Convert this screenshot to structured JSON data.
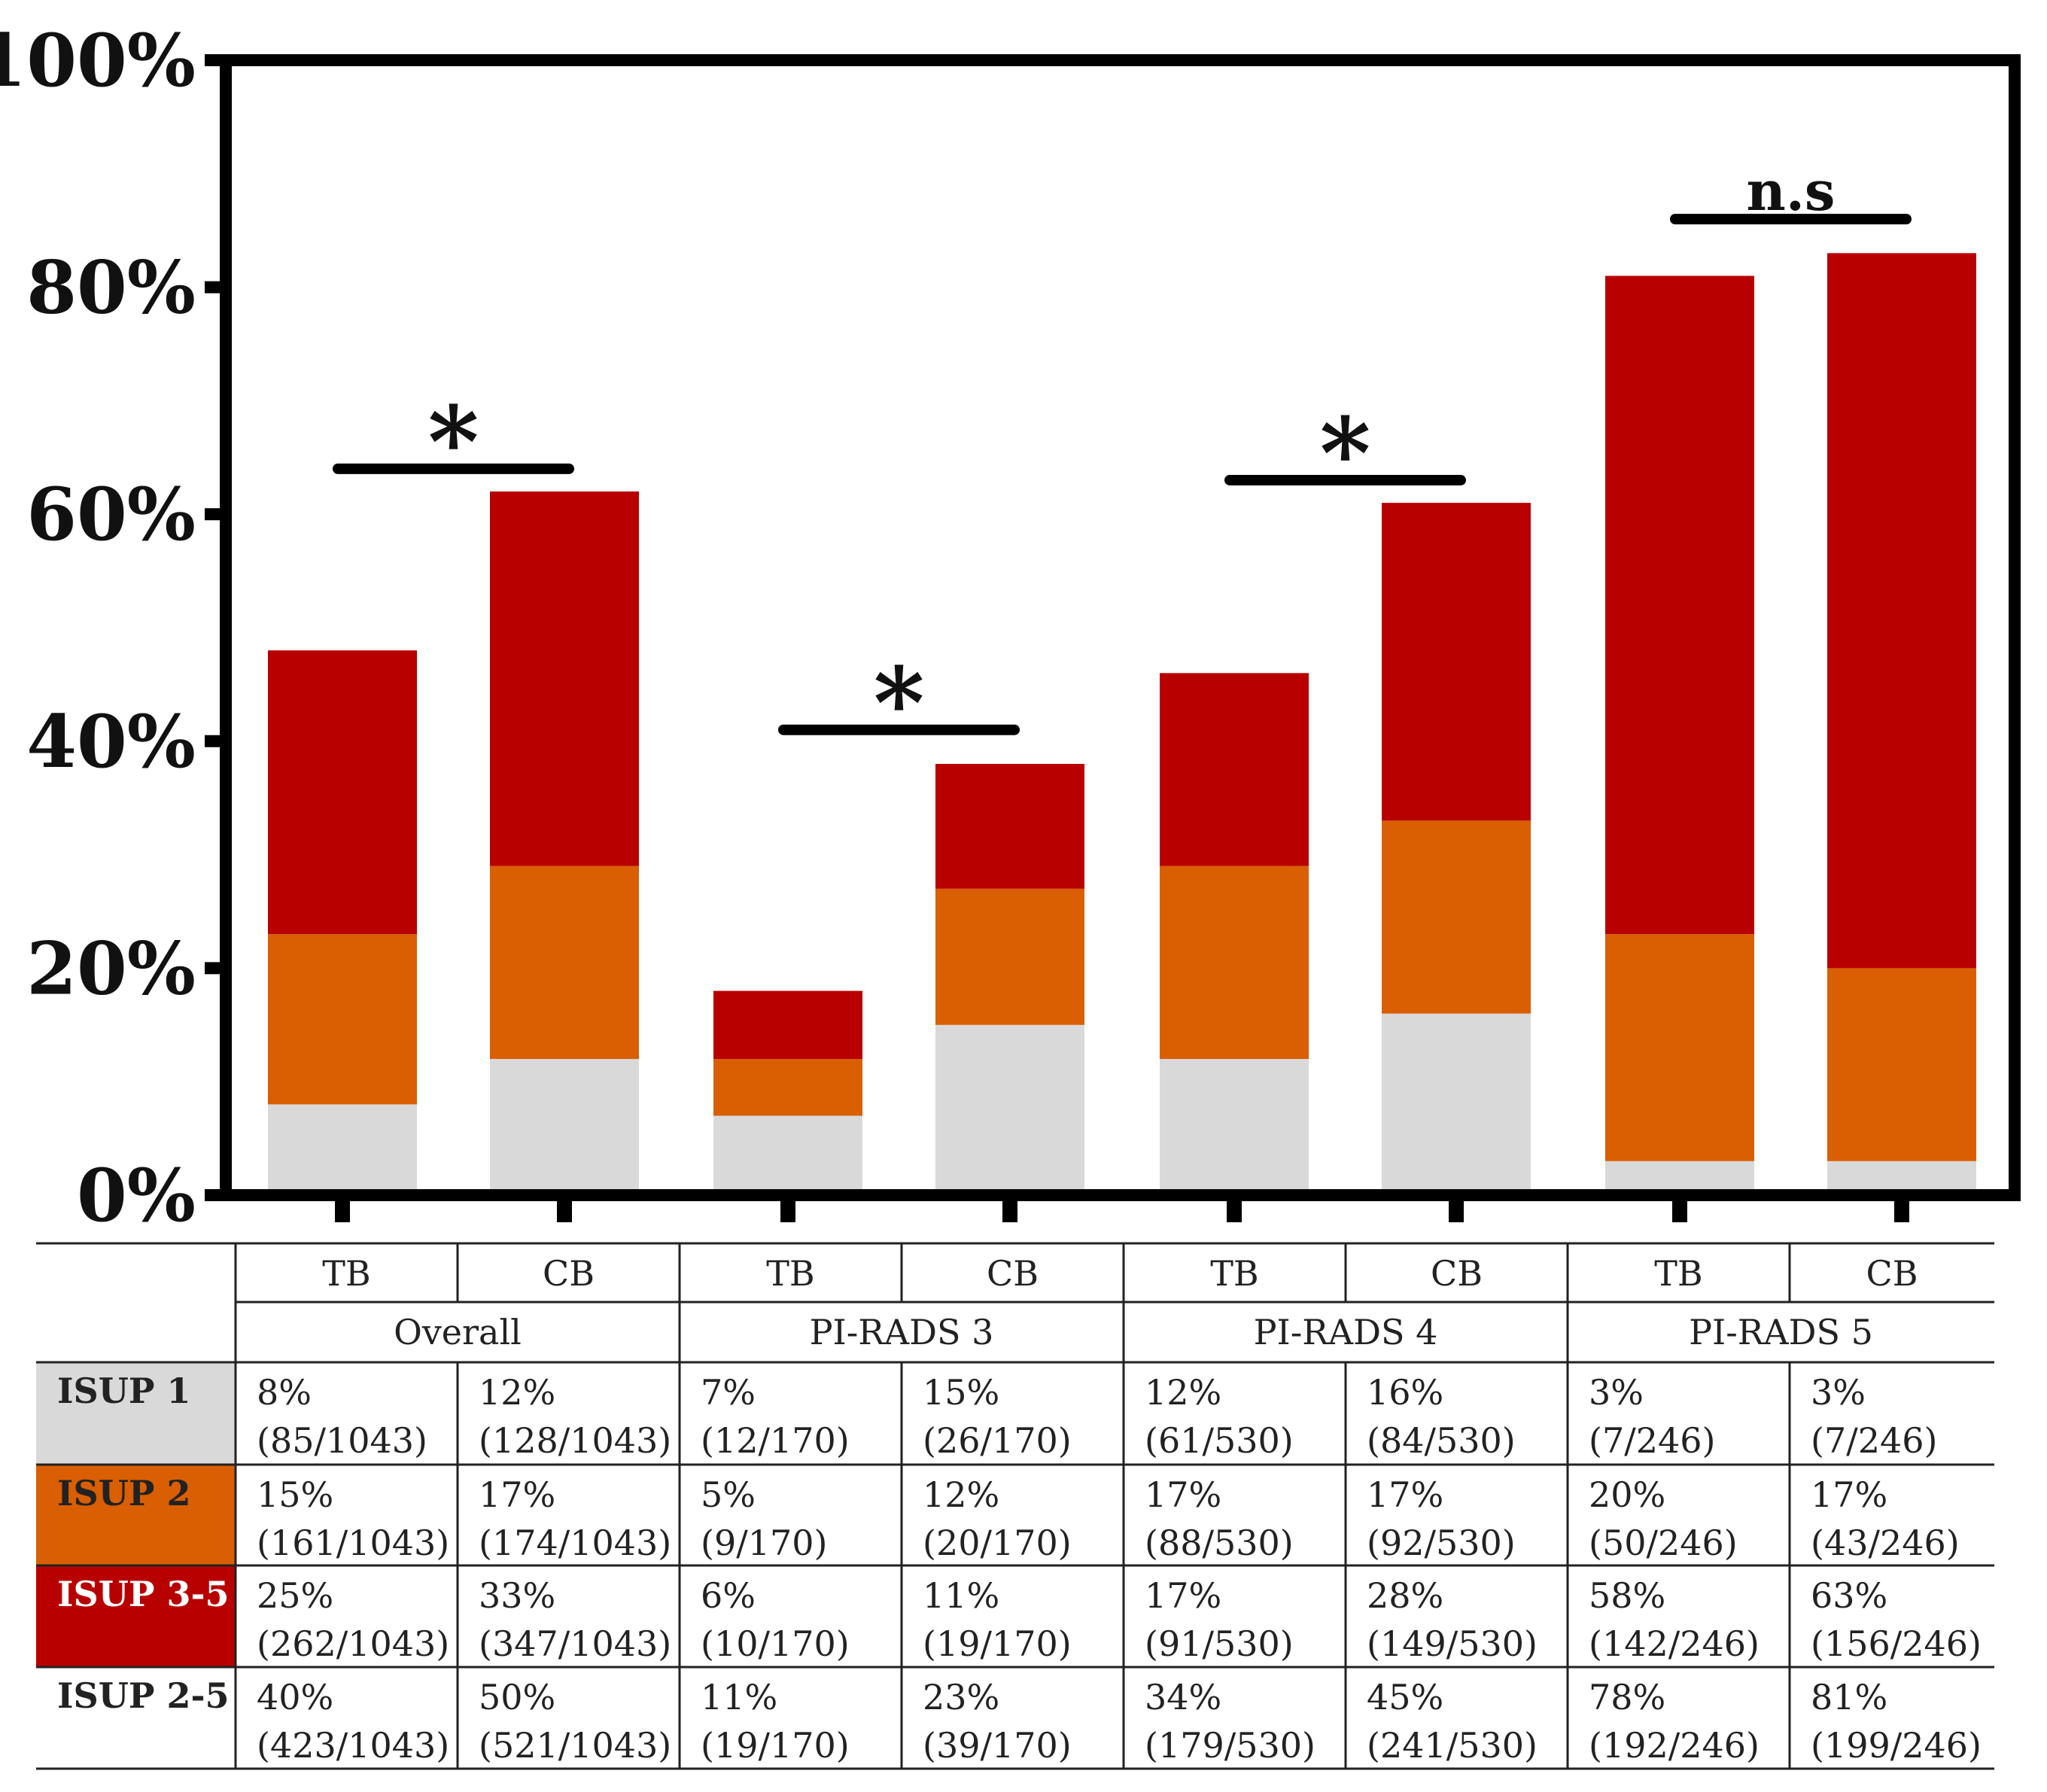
{
  "chart_data": {
    "type": "bar",
    "stacked": true,
    "ylim": [
      0,
      100
    ],
    "yticks": [
      "0%",
      "20%",
      "40%",
      "60%",
      "80%",
      "100%"
    ],
    "ytick_values": [
      0,
      20,
      40,
      60,
      80,
      100
    ],
    "groups": [
      "Overall",
      "PI-RADS 3",
      "PI-RADS 4",
      "PI-RADS 5"
    ],
    "bar_labels": [
      "TB",
      "CB",
      "TB",
      "CB",
      "TB",
      "CB",
      "TB",
      "CB"
    ],
    "series": [
      {
        "name": "ISUP 1",
        "color": "#d9d9d9",
        "values": [
          8,
          12,
          7,
          15,
          12,
          16,
          3,
          3
        ]
      },
      {
        "name": "ISUP 2",
        "color": "#d95f02",
        "values": [
          15,
          17,
          5,
          12,
          17,
          17,
          20,
          17
        ]
      },
      {
        "name": "ISUP 3-5",
        "color": "#b80000",
        "values": [
          25,
          33,
          6,
          11,
          17,
          28,
          58,
          63
        ]
      }
    ],
    "significance": [
      {
        "group": "Overall",
        "label": "*",
        "y": 64
      },
      {
        "group": "PI-RADS 3",
        "label": "*",
        "y": 41
      },
      {
        "group": "PI-RADS 4",
        "label": "*",
        "y": 63
      },
      {
        "group": "PI-RADS 5",
        "label": "n.s",
        "y": 86
      }
    ],
    "table": {
      "rows": [
        {
          "label": "ISUP 1",
          "bg": "#d9d9d9",
          "fg": "#222222",
          "cells": [
            [
              "8%",
              "(85/1043)"
            ],
            [
              "12%",
              "(128/1043)"
            ],
            [
              "7%",
              "(12/170)"
            ],
            [
              "15%",
              "(26/170)"
            ],
            [
              "12%",
              "(61/530)"
            ],
            [
              "16%",
              "(84/530)"
            ],
            [
              "3%",
              "(7/246)"
            ],
            [
              "3%",
              "(7/246)"
            ]
          ]
        },
        {
          "label": "ISUP 2",
          "bg": "#d95f02",
          "fg": "#222222",
          "cells": [
            [
              "15%",
              "(161/1043)"
            ],
            [
              "17%",
              "(174/1043)"
            ],
            [
              "5%",
              "(9/170)"
            ],
            [
              "12%",
              "(20/170)"
            ],
            [
              "17%",
              "(88/530)"
            ],
            [
              "17%",
              "(92/530)"
            ],
            [
              "20%",
              "(50/246)"
            ],
            [
              "17%",
              "(43/246)"
            ]
          ]
        },
        {
          "label": "ISUP 3-5",
          "bg": "#b80000",
          "fg": "#ffffff",
          "cells": [
            [
              "25%",
              "(262/1043)"
            ],
            [
              "33%",
              "(347/1043)"
            ],
            [
              "6%",
              "(10/170)"
            ],
            [
              "11%",
              "(19/170)"
            ],
            [
              "17%",
              "(91/530)"
            ],
            [
              "28%",
              "(149/530)"
            ],
            [
              "58%",
              "(142/246)"
            ],
            [
              "63%",
              "(156/246)"
            ]
          ]
        },
        {
          "label": "ISUP 2-5",
          "bg": "#ffffff",
          "fg": "#222222",
          "cells": [
            [
              "40%",
              "(423/1043)"
            ],
            [
              "50%",
              "(521/1043)"
            ],
            [
              "11%",
              "(19/170)"
            ],
            [
              "23%",
              "(39/170)"
            ],
            [
              "34%",
              "(179/530)"
            ],
            [
              "45%",
              "(241/530)"
            ],
            [
              "78%",
              "(192/246)"
            ],
            [
              "81%",
              "(199/246)"
            ]
          ]
        }
      ]
    }
  }
}
